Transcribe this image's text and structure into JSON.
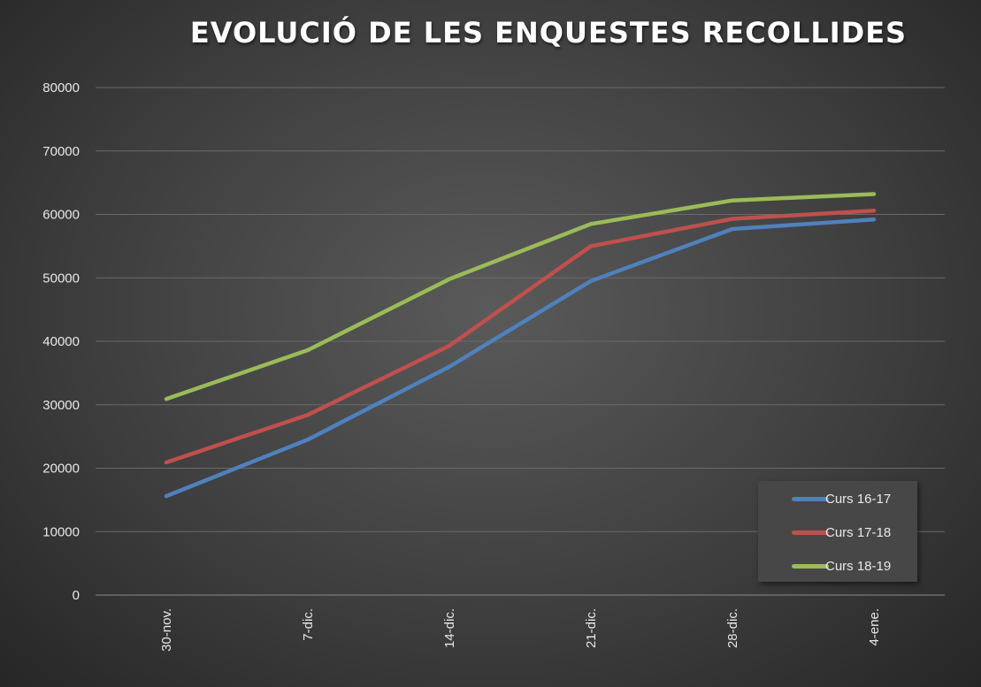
{
  "chart_data": {
    "type": "line",
    "title": "EVOLUCIÓ DE LES ENQUESTES RECOLLIDES",
    "xlabel": "",
    "ylabel": "",
    "categories": [
      "30-nov.",
      "7-dic.",
      "14-dic.",
      "21-dic.",
      "28-dic.",
      "4-ene."
    ],
    "ylim": [
      0,
      80000
    ],
    "yticks": [
      0,
      10000,
      20000,
      30000,
      40000,
      50000,
      60000,
      70000,
      80000
    ],
    "grid": true,
    "legend_position": "bottom-right",
    "series": [
      {
        "name": "Curs 16-17",
        "color": "#4f81bd",
        "values": [
          15600,
          24500,
          36000,
          49500,
          57700,
          59200
        ]
      },
      {
        "name": "Curs 17-18",
        "color": "#c0504d",
        "values": [
          20900,
          28400,
          39300,
          55000,
          59300,
          60600
        ]
      },
      {
        "name": "Curs 18-19",
        "color": "#9bbb59",
        "values": [
          30900,
          38600,
          49800,
          58500,
          62200,
          63200
        ]
      }
    ]
  }
}
